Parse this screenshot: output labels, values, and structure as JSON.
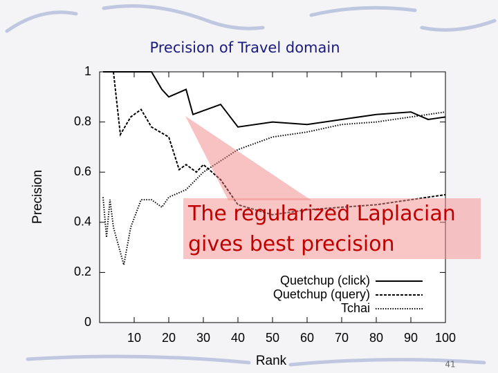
{
  "chart_data": {
    "type": "line",
    "title": "Precision of Travel domain",
    "xlabel": "Rank",
    "ylabel": "Precision",
    "xlim": [
      0,
      100
    ],
    "xticks": [
      10,
      20,
      30,
      40,
      50,
      60,
      70,
      80,
      90,
      100
    ],
    "ylim": [
      0,
      1
    ],
    "yticks": [
      0,
      0.2,
      0.4,
      0.6,
      0.8,
      1
    ],
    "legend": "lower right",
    "series": [
      {
        "name": "Quetchup (click)",
        "color": "#000000",
        "style": "solid",
        "x": [
          1,
          15,
          18,
          20,
          25,
          27,
          35,
          40,
          50,
          60,
          70,
          80,
          90,
          95,
          100
        ],
        "values": [
          1.0,
          1.0,
          0.93,
          0.9,
          0.93,
          0.83,
          0.87,
          0.78,
          0.8,
          0.79,
          0.81,
          0.83,
          0.84,
          0.81,
          0.82
        ]
      },
      {
        "name": "Quetchup (query)",
        "color": "#000000",
        "style": "dashed",
        "x": [
          4,
          6,
          9,
          12,
          15,
          20,
          23,
          25,
          28,
          30,
          35,
          40,
          45,
          50,
          60,
          70,
          80,
          90,
          100
        ],
        "values": [
          1.0,
          0.75,
          0.82,
          0.85,
          0.78,
          0.74,
          0.61,
          0.63,
          0.6,
          0.63,
          0.57,
          0.47,
          0.45,
          0.43,
          0.45,
          0.46,
          0.47,
          0.49,
          0.51
        ]
      },
      {
        "name": "Tchai",
        "color": "#000000",
        "style": "dotted",
        "x": [
          1,
          2,
          3,
          4,
          6,
          7,
          9,
          12,
          15,
          18,
          20,
          25,
          30,
          40,
          50,
          60,
          70,
          80,
          90,
          100
        ],
        "values": [
          0.5,
          0.34,
          0.49,
          0.38,
          0.28,
          0.23,
          0.38,
          0.49,
          0.49,
          0.46,
          0.5,
          0.53,
          0.6,
          0.69,
          0.74,
          0.76,
          0.79,
          0.8,
          0.82,
          0.84
        ]
      }
    ],
    "annotation": "The regularized Laplacian gives best precision"
  },
  "slide_number": "41"
}
